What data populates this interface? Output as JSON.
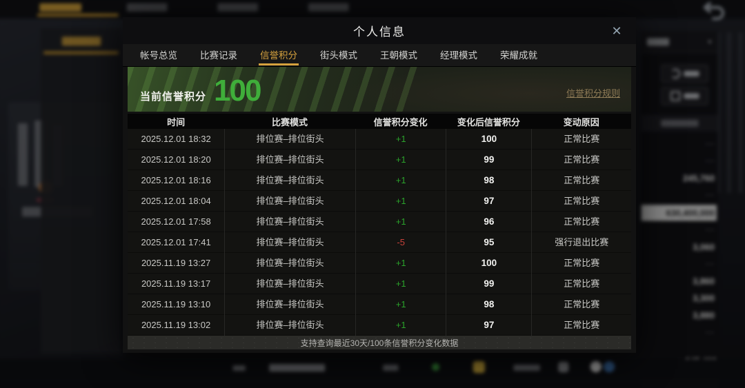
{
  "colors": {
    "accent_gold": "#d6a23e",
    "score_green": "#3fae3a",
    "change_positive_green": "#2ba32b",
    "change_negative_red": "#c8423a",
    "rules_link_tan": "#a59063",
    "sidebar_highlight": "#d2d2d0"
  },
  "background": {
    "back_icon": "return-arrow-icon",
    "sidebar": {
      "dropdown_icon": "chevron-down-icon",
      "rows": [
        {
          "value": "---",
          "highlight": false
        },
        {
          "value": "---",
          "highlight": false
        },
        {
          "value": "245,760",
          "highlight": false
        },
        {
          "value": "---",
          "highlight": false
        },
        {
          "value": "630,400,000",
          "highlight": true
        },
        {
          "value": "---",
          "highlight": false
        },
        {
          "value": "3,060",
          "highlight": false
        },
        {
          "value": "---",
          "highlight": false
        },
        {
          "value": "3,860",
          "highlight": false
        },
        {
          "value": "3,300",
          "highlight": false
        },
        {
          "value": "3,880",
          "highlight": false
        },
        {
          "value": "---",
          "highlight": false
        }
      ],
      "bottom_value": "645,400"
    }
  },
  "modal": {
    "title": "个人信息",
    "close": "✕",
    "tabs": [
      "帐号总览",
      "比赛记录",
      "信誉积分",
      "街头模式",
      "王朝模式",
      "经理模式",
      "荣耀成就"
    ],
    "active_tab": "信誉积分",
    "score": {
      "label": "当前信誉积分",
      "value": "100",
      "rules_link": "信誉积分规则"
    },
    "table": {
      "headers": [
        "时间",
        "比赛模式",
        "信誉积分变化",
        "变化后信誉积分",
        "变动原因"
      ],
      "rows": [
        {
          "time": "2025.12.01 18:32",
          "mode": "排位赛–排位街头",
          "change": "+1",
          "after": "100",
          "reason": "正常比赛"
        },
        {
          "time": "2025.12.01 18:20",
          "mode": "排位赛–排位街头",
          "change": "+1",
          "after": "99",
          "reason": "正常比赛"
        },
        {
          "time": "2025.12.01 18:16",
          "mode": "排位赛–排位街头",
          "change": "+1",
          "after": "98",
          "reason": "正常比赛"
        },
        {
          "time": "2025.12.01 18:04",
          "mode": "排位赛–排位街头",
          "change": "+1",
          "after": "97",
          "reason": "正常比赛"
        },
        {
          "time": "2025.12.01 17:58",
          "mode": "排位赛–排位街头",
          "change": "+1",
          "after": "96",
          "reason": "正常比赛"
        },
        {
          "time": "2025.12.01 17:41",
          "mode": "排位赛–排位街头",
          "change": "-5",
          "after": "95",
          "reason": "强行退出比赛"
        },
        {
          "time": "2025.11.19 13:27",
          "mode": "排位赛–排位街头",
          "change": "+1",
          "after": "100",
          "reason": "正常比赛"
        },
        {
          "time": "2025.11.19 13:17",
          "mode": "排位赛–排位街头",
          "change": "+1",
          "after": "99",
          "reason": "正常比赛"
        },
        {
          "time": "2025.11.19 13:10",
          "mode": "排位赛–排位街头",
          "change": "+1",
          "after": "98",
          "reason": "正常比赛"
        },
        {
          "time": "2025.11.19 13:02",
          "mode": "排位赛–排位街头",
          "change": "+1",
          "after": "97",
          "reason": "正常比赛"
        }
      ]
    },
    "footer_note": "支持查询最近30天/100条信誉积分变化数据"
  }
}
